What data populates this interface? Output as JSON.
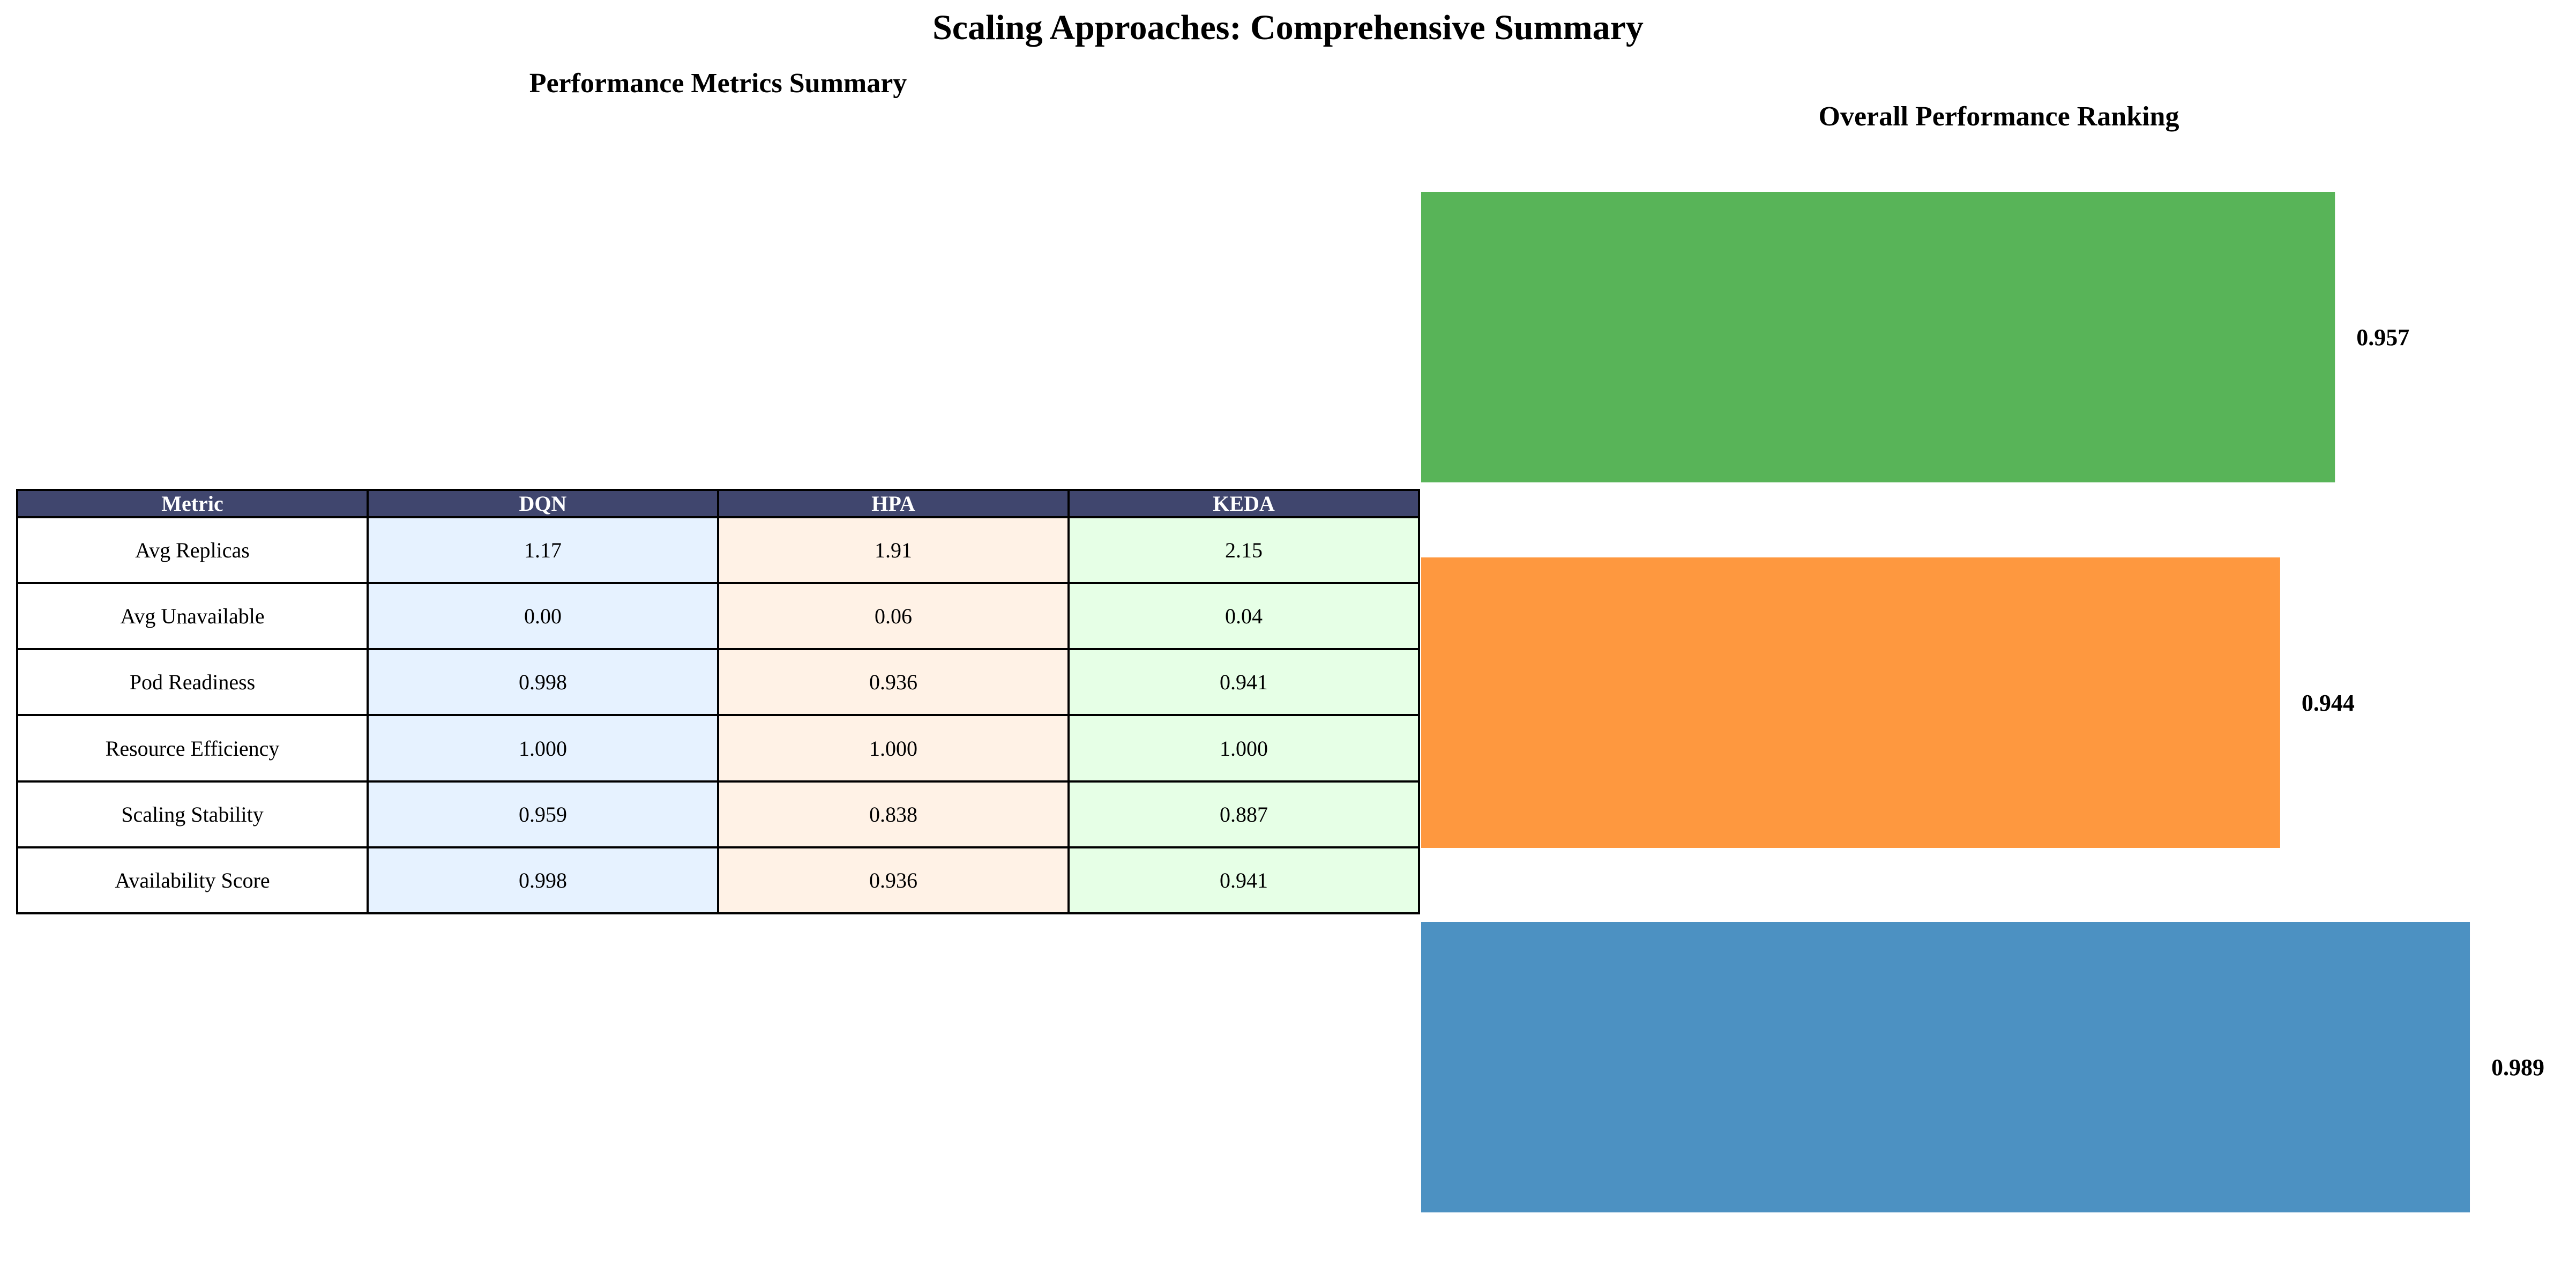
{
  "title": "Scaling Approaches: Comprehensive Summary",
  "chart_data": [
    {
      "type": "table",
      "title": "Performance Metrics Summary",
      "columns": [
        "Metric",
        "DQN",
        "HPA",
        "KEDA"
      ],
      "rows": [
        [
          "Avg Replicas",
          "1.17",
          "1.91",
          "2.15"
        ],
        [
          "Avg Unavailable",
          "0.00",
          "0.06",
          "0.04"
        ],
        [
          "Pod Readiness",
          "0.998",
          "0.936",
          "0.941"
        ],
        [
          "Resource Efficiency",
          "1.000",
          "1.000",
          "1.000"
        ],
        [
          "Scaling Stability",
          "0.959",
          "0.838",
          "0.887"
        ],
        [
          "Availability Score",
          "0.998",
          "0.936",
          "0.941"
        ]
      ],
      "column_colors": [
        "#ffffff",
        "#e6f2ff",
        "#fff2e6",
        "#e6ffe6"
      ],
      "header_color": "#40466e"
    },
    {
      "type": "bar",
      "orientation": "horizontal",
      "title": "Overall Performance Ranking",
      "xlabel": "",
      "ylabel": "",
      "bars": [
        {
          "value": 0.957,
          "label": "0.957",
          "color": "#58b458"
        },
        {
          "value": 0.944,
          "label": "0.944",
          "color": "#fe983f"
        },
        {
          "value": 0.989,
          "label": "0.989",
          "color": "#4c91c2"
        }
      ],
      "grid": false,
      "axes_visible": false
    }
  ]
}
